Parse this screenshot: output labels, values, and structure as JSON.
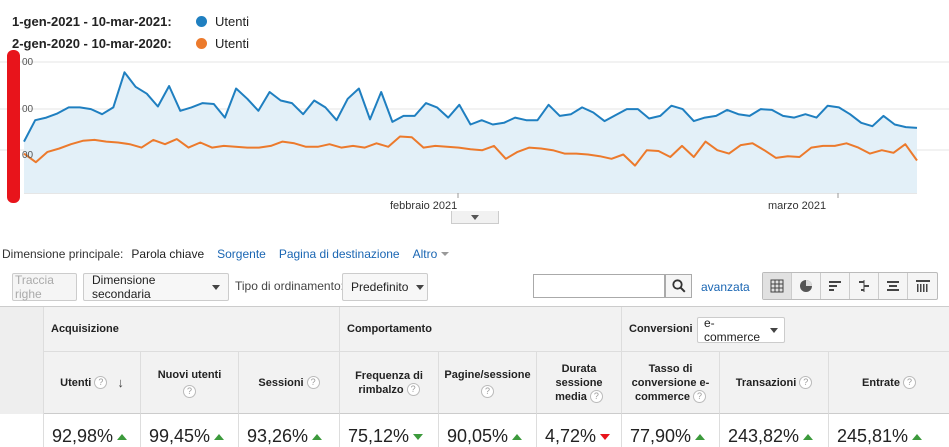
{
  "legend": [
    {
      "range": "1-gen-2021 - 10-mar-2021:",
      "metric": "Utenti",
      "color": "#1f7fc0"
    },
    {
      "range": "2-gen-2020 - 10-mar-2020:",
      "metric": "Utenti",
      "color": "#ec7a2c"
    }
  ],
  "chart_data": {
    "type": "line",
    "y_tick_labels": [
      "00",
      "00",
      "00"
    ],
    "x_tick_labels": [
      "febbraio 2021",
      "marzo 2021"
    ],
    "legend_placement": "top-left",
    "grid": true,
    "fill_series_0": true,
    "series": [
      {
        "name": "Utenti",
        "period": "1-gen-2021 - 10-mar-2021",
        "color": "#1f7fc0",
        "values": [
          100,
          125,
          128,
          133,
          140,
          140,
          138,
          132,
          140,
          181,
          164,
          156,
          141,
          165,
          136,
          140,
          145,
          144,
          128,
          162,
          150,
          136,
          158,
          148,
          145,
          132,
          148,
          140,
          125,
          150,
          162,
          126,
          158,
          123,
          130,
          130,
          145,
          140,
          128,
          143,
          120,
          125,
          120,
          122,
          128,
          125,
          125,
          143,
          130,
          132,
          140,
          134,
          124,
          131,
          138,
          138,
          127,
          130,
          142,
          138,
          124,
          128,
          130,
          137,
          132,
          130,
          138,
          137,
          130,
          128,
          132,
          128,
          142,
          140,
          132,
          122,
          118,
          130,
          120,
          117,
          116
        ]
      },
      {
        "name": "Utenti",
        "period": "2-gen-2020 - 10-mar-2020",
        "color": "#ec7a2c",
        "values": [
          86,
          76,
          88,
          92,
          97,
          101,
          102,
          100,
          99,
          97,
          93,
          102,
          97,
          103,
          93,
          99,
          93,
          95,
          94,
          93,
          93,
          95,
          100,
          98,
          94,
          94,
          97,
          93,
          95,
          93,
          98,
          94,
          106,
          105,
          93,
          95,
          94,
          93,
          91,
          90,
          95,
          80,
          88,
          93,
          92,
          90,
          86,
          86,
          85,
          83,
          80,
          85,
          72,
          90,
          89,
          82,
          95,
          82,
          100,
          90,
          86,
          96,
          98,
          90,
          81,
          83,
          82,
          93,
          95,
          95,
          98,
          93,
          86,
          90,
          87,
          97,
          78
        ]
      }
    ]
  },
  "primary_dimension": {
    "label": "Dimensione principale:",
    "active": "Parola chiave",
    "links": [
      "Sorgente",
      "Pagina di destinazione"
    ],
    "more": "Altro"
  },
  "toolbar": {
    "plot_rows": "Traccia righe",
    "secondary_dimension": "Dimensione secondaria",
    "sort_type_label": "Tipo di ordinamento:",
    "sort_type_value": "Predefinito",
    "search_value": "",
    "advanced": "avanzata"
  },
  "table": {
    "groups": {
      "acquisition": "Acquisizione",
      "behavior": "Comportamento",
      "conversions": "Conversioni",
      "conversion_select": "e-commerce"
    },
    "columns": {
      "users": "Utenti",
      "new_users": "Nuovi utenti",
      "sessions": "Sessioni",
      "bounce_1": "Frequenza di",
      "bounce_2": "rimbalzo",
      "pages_session": "Pagine/sessione",
      "duration_1": "Durata",
      "duration_2": "sessione",
      "duration_3": "media",
      "conv_rate_1": "Tasso di",
      "conv_rate_2": "conversione e-",
      "conv_rate_3": "commerce",
      "transactions": "Transazioni",
      "revenue": "Entrate"
    },
    "help_glyph": "?",
    "sort_glyph": "↓",
    "totals": {
      "users": "92,98%",
      "new_users": "99,45%",
      "sessions": "93,26%",
      "bounce": "75,12%",
      "pages_session": "90,05%",
      "duration": "4,72%",
      "conv_rate": "77,90%",
      "transactions": "243,82%",
      "revenue": "245,81%"
    }
  }
}
